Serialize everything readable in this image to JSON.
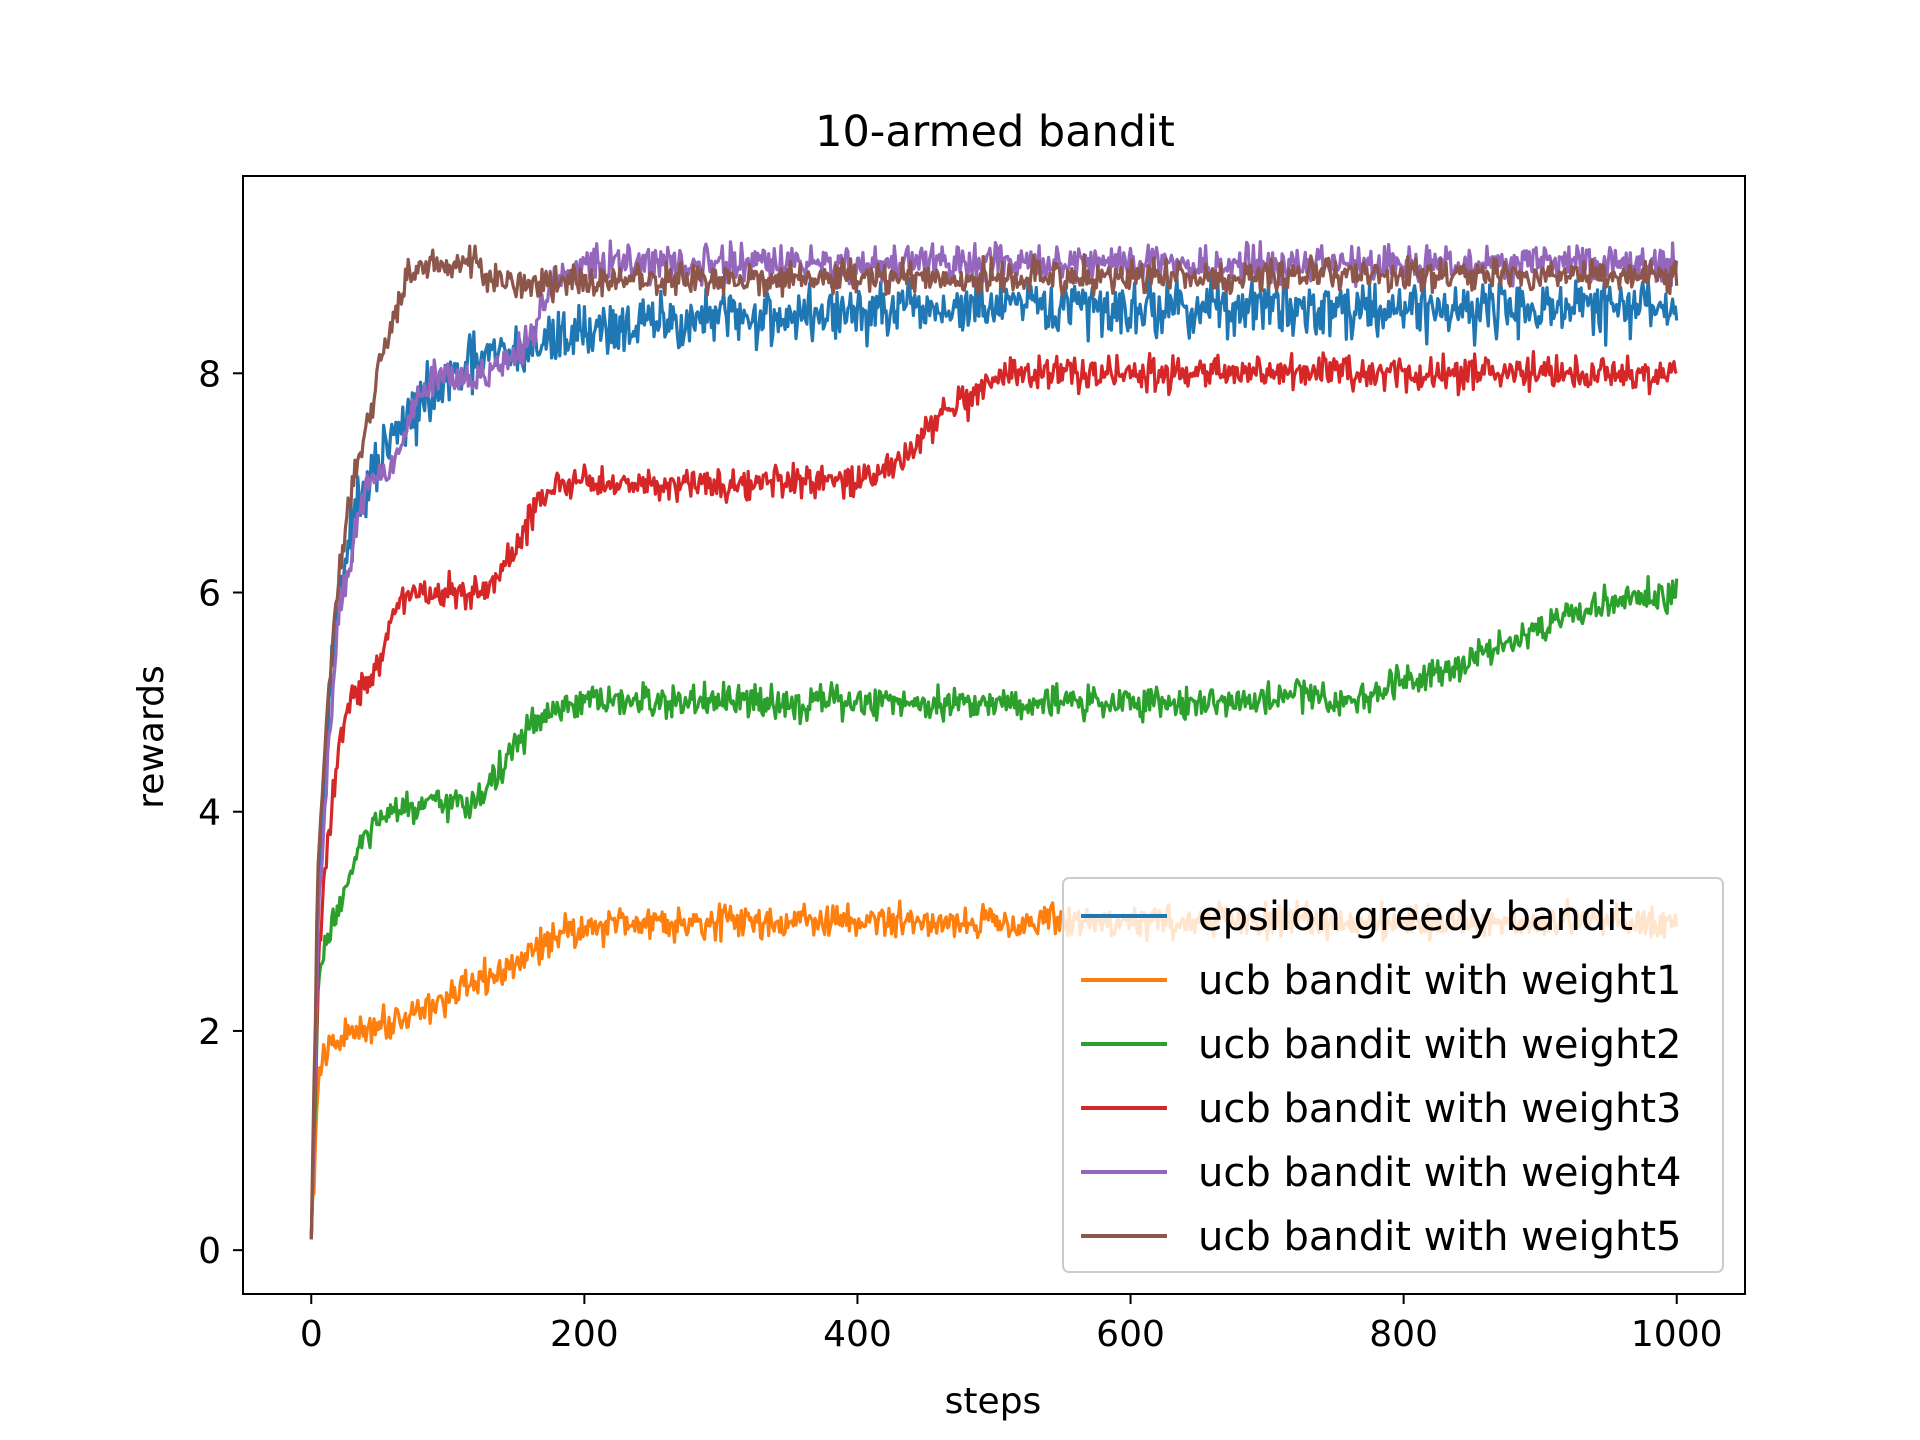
{
  "chart_data": {
    "type": "line",
    "title": "10-armed bandit",
    "xlabel": "steps",
    "ylabel": "rewards",
    "xlim": [
      -50,
      1050
    ],
    "ylim": [
      -0.4,
      9.8
    ],
    "xticks": [
      0,
      200,
      400,
      600,
      800,
      1000
    ],
    "yticks": [
      0,
      2,
      4,
      6,
      8
    ],
    "grid": false,
    "legend_position": "lower-right",
    "series": [
      {
        "name": "epsilon greedy bandit",
        "color": "#1f77b4",
        "noise": 0.22,
        "points": [
          [
            0,
            0.1
          ],
          [
            5,
            3.2
          ],
          [
            10,
            4.5
          ],
          [
            15,
            5.3
          ],
          [
            20,
            6.0
          ],
          [
            30,
            6.6
          ],
          [
            40,
            6.9
          ],
          [
            50,
            7.2
          ],
          [
            60,
            7.4
          ],
          [
            80,
            7.7
          ],
          [
            100,
            7.9
          ],
          [
            120,
            8.1
          ],
          [
            150,
            8.2
          ],
          [
            200,
            8.4
          ],
          [
            300,
            8.5
          ],
          [
            400,
            8.55
          ],
          [
            500,
            8.6
          ],
          [
            700,
            8.6
          ],
          [
            1000,
            8.6
          ]
        ]
      },
      {
        "name": "ucb bandit with weight1",
        "color": "#ff7f0e",
        "noise": 0.13,
        "points": [
          [
            0,
            0.1
          ],
          [
            5,
            1.5
          ],
          [
            10,
            1.8
          ],
          [
            30,
            2.0
          ],
          [
            60,
            2.1
          ],
          [
            100,
            2.3
          ],
          [
            150,
            2.6
          ],
          [
            180,
            2.9
          ],
          [
            230,
            3.0
          ],
          [
            1000,
            3.0
          ]
        ]
      },
      {
        "name": "ucb bandit with weight2",
        "color": "#2ca02c",
        "noise": 0.13,
        "points": [
          [
            0,
            0.1
          ],
          [
            5,
            2.3
          ],
          [
            10,
            2.8
          ],
          [
            25,
            3.3
          ],
          [
            40,
            3.8
          ],
          [
            60,
            4.0
          ],
          [
            120,
            4.1
          ],
          [
            140,
            4.4
          ],
          [
            160,
            4.8
          ],
          [
            200,
            5.0
          ],
          [
            700,
            5.0
          ],
          [
            720,
            5.1
          ],
          [
            760,
            5.0
          ],
          [
            800,
            5.2
          ],
          [
            850,
            5.4
          ],
          [
            900,
            5.7
          ],
          [
            950,
            5.9
          ],
          [
            1000,
            6.0
          ]
        ]
      },
      {
        "name": "ucb bandit with weight3",
        "color": "#d62728",
        "noise": 0.13,
        "points": [
          [
            0,
            0.1
          ],
          [
            5,
            2.5
          ],
          [
            10,
            3.5
          ],
          [
            20,
            4.6
          ],
          [
            30,
            5.1
          ],
          [
            50,
            5.3
          ],
          [
            60,
            5.8
          ],
          [
            70,
            6.0
          ],
          [
            130,
            6.0
          ],
          [
            150,
            6.4
          ],
          [
            165,
            6.8
          ],
          [
            180,
            7.0
          ],
          [
            400,
            7.0
          ],
          [
            430,
            7.2
          ],
          [
            460,
            7.6
          ],
          [
            490,
            7.8
          ],
          [
            510,
            8.0
          ],
          [
            1000,
            8.0
          ]
        ]
      },
      {
        "name": "ucb bandit with weight4",
        "color": "#9467bd",
        "noise": 0.14,
        "points": [
          [
            0,
            0.1
          ],
          [
            5,
            2.9
          ],
          [
            10,
            4.0
          ],
          [
            15,
            5.0
          ],
          [
            20,
            5.8
          ],
          [
            30,
            6.4
          ],
          [
            40,
            7.0
          ],
          [
            60,
            7.2
          ],
          [
            80,
            7.8
          ],
          [
            90,
            8.0
          ],
          [
            140,
            8.0
          ],
          [
            160,
            8.3
          ],
          [
            175,
            8.8
          ],
          [
            200,
            9.0
          ],
          [
            1000,
            9.0
          ]
        ]
      },
      {
        "name": "ucb bandit with weight5",
        "color": "#8c564b",
        "noise": 0.13,
        "points": [
          [
            0,
            0.1
          ],
          [
            5,
            3.5
          ],
          [
            10,
            4.6
          ],
          [
            15,
            5.5
          ],
          [
            20,
            6.1
          ],
          [
            30,
            7.0
          ],
          [
            40,
            7.5
          ],
          [
            50,
            8.0
          ],
          [
            60,
            8.5
          ],
          [
            70,
            8.9
          ],
          [
            100,
            9.0
          ],
          [
            120,
            9.05
          ],
          [
            130,
            8.85
          ],
          [
            160,
            8.8
          ],
          [
            200,
            8.85
          ],
          [
            1000,
            8.9
          ]
        ]
      }
    ]
  }
}
